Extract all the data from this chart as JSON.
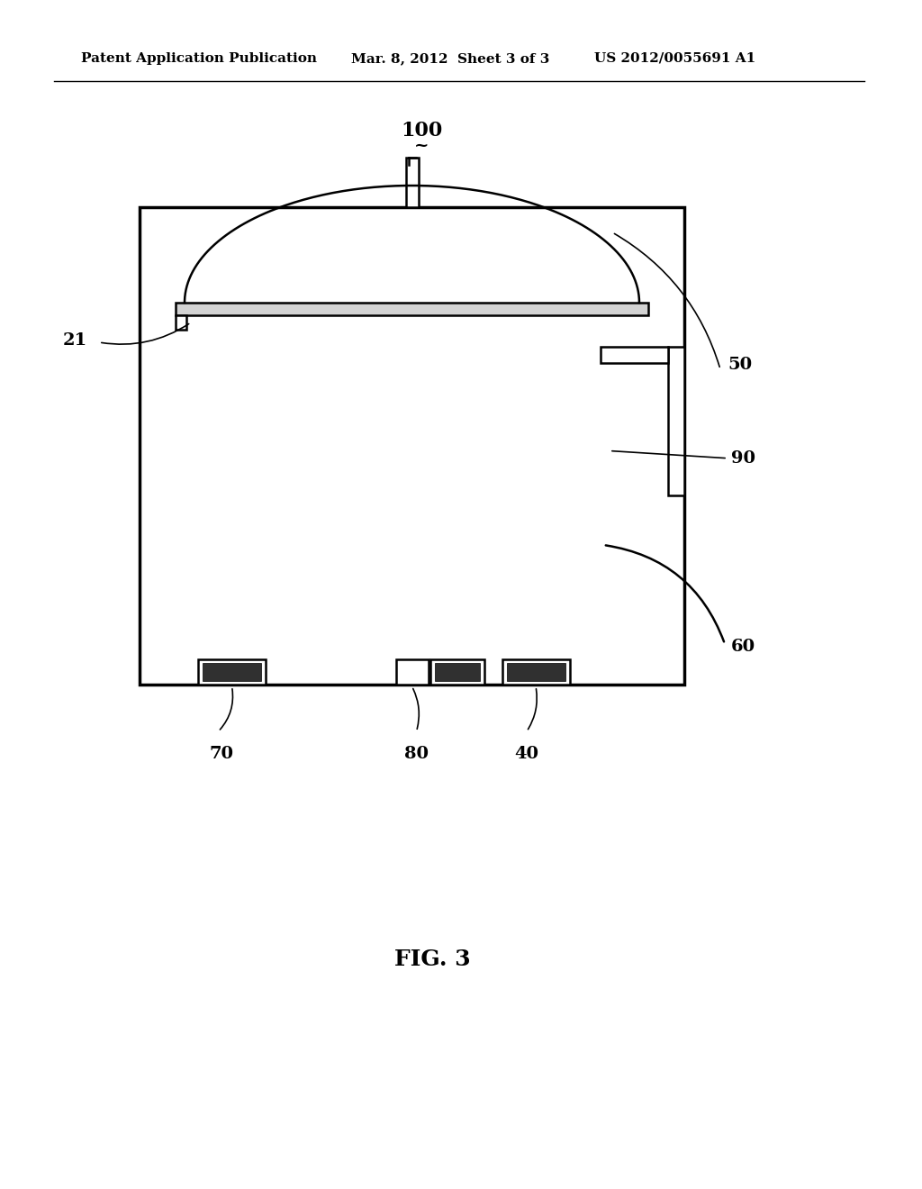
{
  "bg_color": "#ffffff",
  "line_color": "#000000",
  "header_left": "Patent Application Publication",
  "header_mid": "Mar. 8, 2012  Sheet 3 of 3",
  "header_right": "US 2012/0055691 A1",
  "fig_label": "FIG. 3",
  "ref_100": "100",
  "ref_50": "50",
  "ref_21": "21",
  "ref_90": "90",
  "ref_60": "60",
  "ref_70": "70",
  "ref_80": "80",
  "ref_40": "40"
}
